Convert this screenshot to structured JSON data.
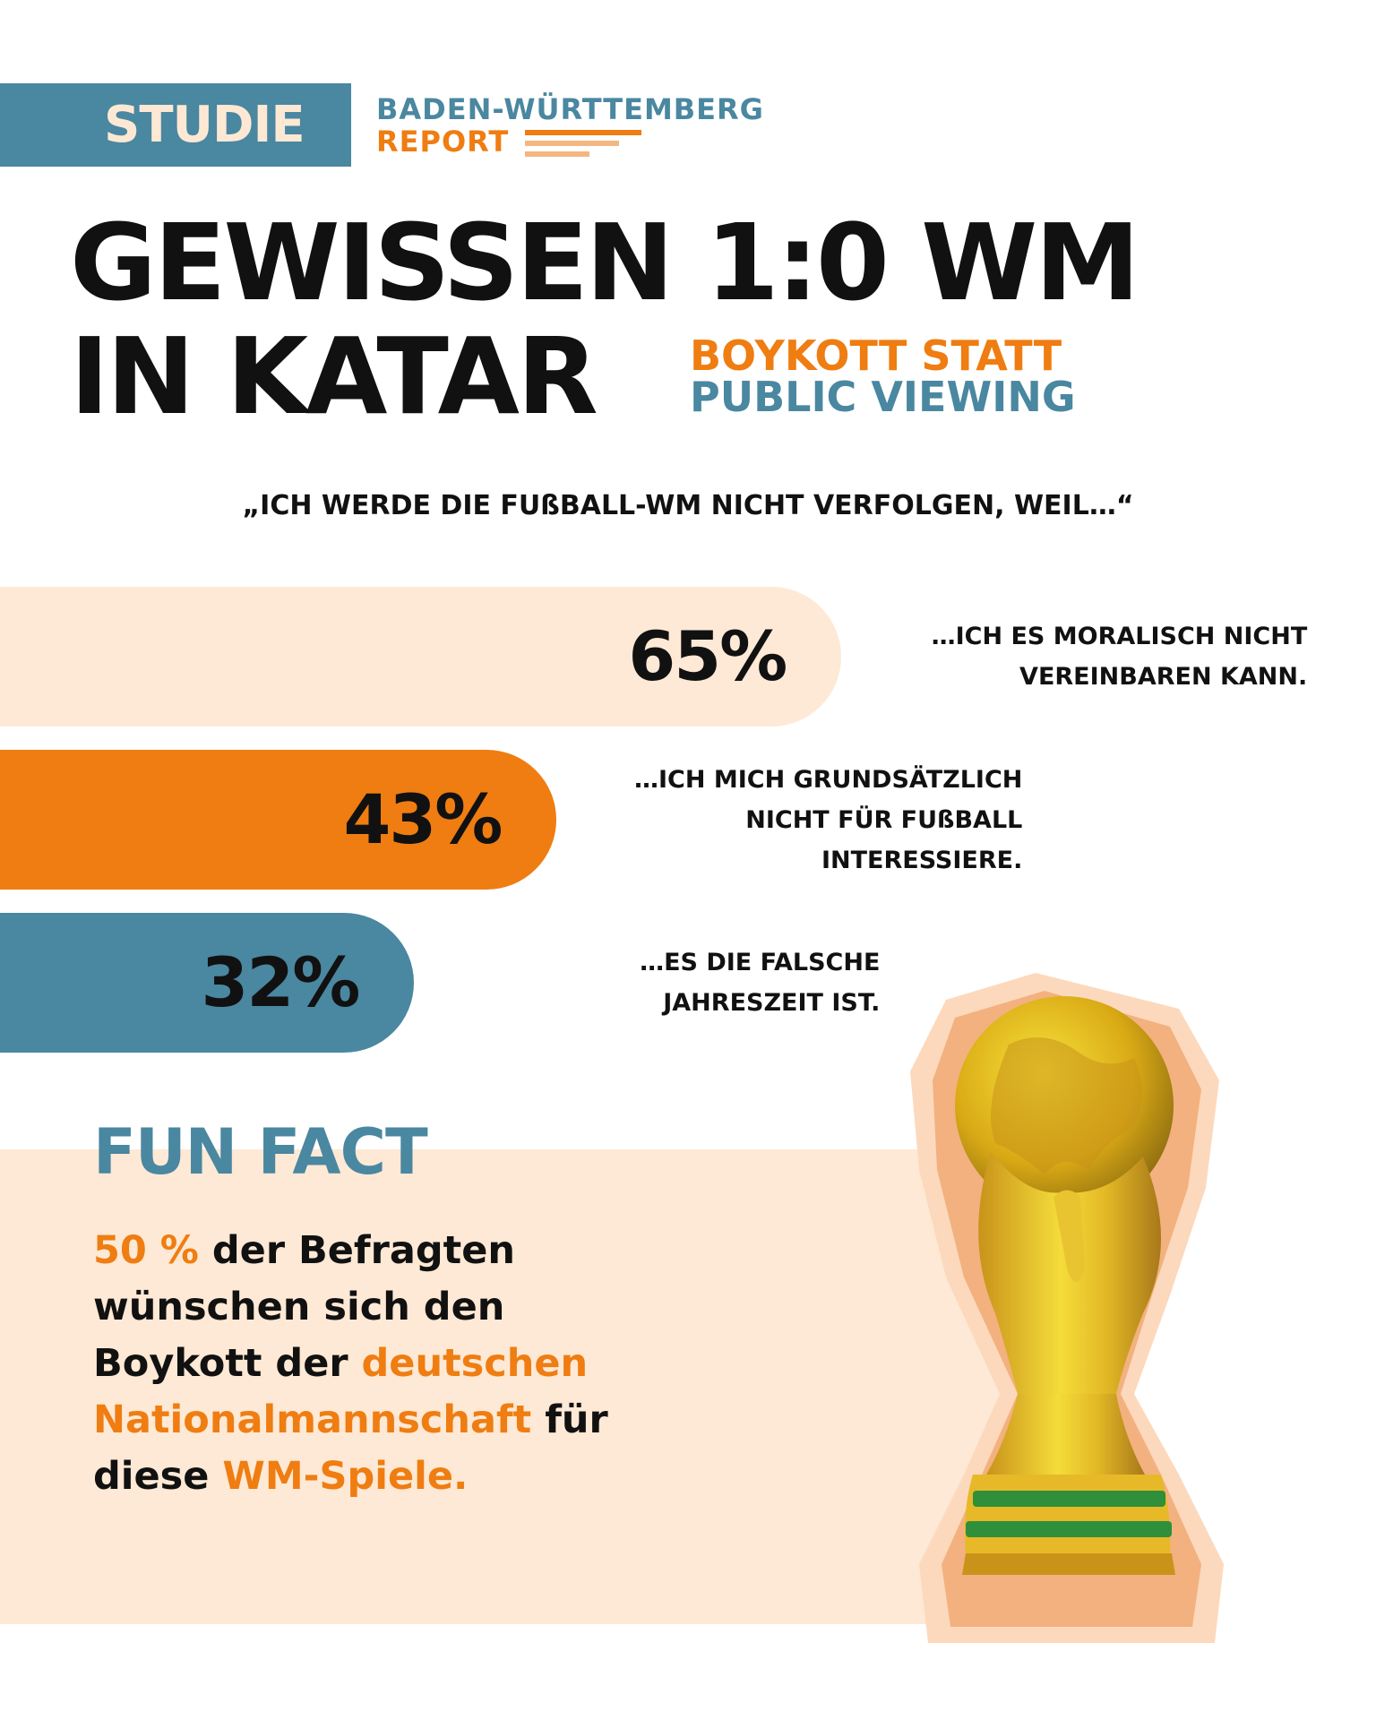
{
  "header": {
    "badge": "STUDIE",
    "report_line1": "BADEN-WÜRTTEMBERG",
    "report_line2": "REPORT"
  },
  "title": {
    "line1": "GEWISSEN 1:0 WM",
    "line2": "IN KATAR",
    "subtitle1": "BOYKOTT STATT",
    "subtitle2": "PUBLIC VIEWING"
  },
  "question": "„ICH WERDE DIE FUßBALL-WM NICHT VERFOLGEN, WEIL…“",
  "colors": {
    "orange": "#ef7d11",
    "blue": "#4a87a0",
    "cream": "#fde9d5",
    "text": "#111111"
  },
  "chart_data": {
    "type": "bar",
    "orientation": "horizontal",
    "categories": [
      "…ICH ES MORALISCH NICHT VEREINBAREN KANN.",
      "…ICH MICH GRUNDSÄTZLICH NICHT FÜR FUßBALL INTERESSIERE.",
      "…ES DIE FALSCHE JAHRESZEIT IST."
    ],
    "values": [
      65,
      43,
      32
    ],
    "value_labels": [
      "65%",
      "43%",
      "32%"
    ],
    "category_lines": [
      [
        "…ICH ES MORALISCH NICHT",
        "VEREINBAREN KANN."
      ],
      [
        "…ICH MICH GRUNDSÄTZLICH",
        "NICHT FÜR FUßBALL",
        "INTERESSIERE."
      ],
      [
        "…ES DIE FALSCHE",
        "JAHRESZEIT IST."
      ]
    ],
    "bar_colors": [
      "#fde9d5",
      "#ef7d11",
      "#4a87a0"
    ],
    "grid": false,
    "legend": "none"
  },
  "fun_fact": {
    "title": "FUN FACT",
    "highlight_number": "50 %",
    "text_part1": " der Befragten wünschen sich den Boykott der ",
    "highlight_team": "deutschen Nationalmannschaft",
    "text_part2": " für diese ",
    "highlight_games": "WM-Spiele."
  }
}
